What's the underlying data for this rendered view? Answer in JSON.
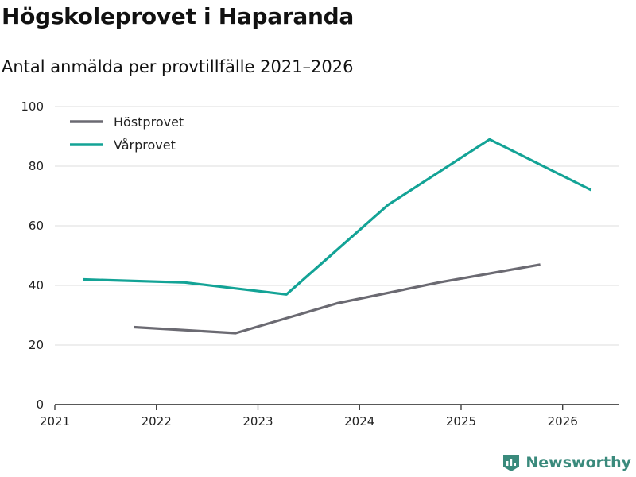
{
  "title": "Högskoleprovet i Haparanda",
  "subtitle": "Antal anmälda per provtillfälle 2021–2026",
  "brand": {
    "name": "Newsworthy",
    "color": "#3a8a7c"
  },
  "chart_data": {
    "type": "line",
    "xlim": [
      2021,
      2026.55
    ],
    "ylim": [
      0,
      100
    ],
    "x_ticks": [
      2021,
      2022,
      2023,
      2024,
      2025,
      2026
    ],
    "y_ticks": [
      0,
      20,
      40,
      60,
      80,
      100
    ],
    "grid": true,
    "legend": "top-left",
    "series": [
      {
        "name": "Höstprovet",
        "color": "#6b6a72",
        "points": [
          [
            2021.78,
            26
          ],
          [
            2022.78,
            24
          ],
          [
            2023.78,
            34
          ],
          [
            2024.78,
            41
          ],
          [
            2025.78,
            47
          ]
        ]
      },
      {
        "name": "Vårprovet",
        "color": "#13a396",
        "points": [
          [
            2021.28,
            42
          ],
          [
            2022.28,
            41
          ],
          [
            2023.28,
            37
          ],
          [
            2024.28,
            67
          ],
          [
            2025.28,
            89
          ],
          [
            2026.28,
            72
          ]
        ]
      }
    ]
  }
}
